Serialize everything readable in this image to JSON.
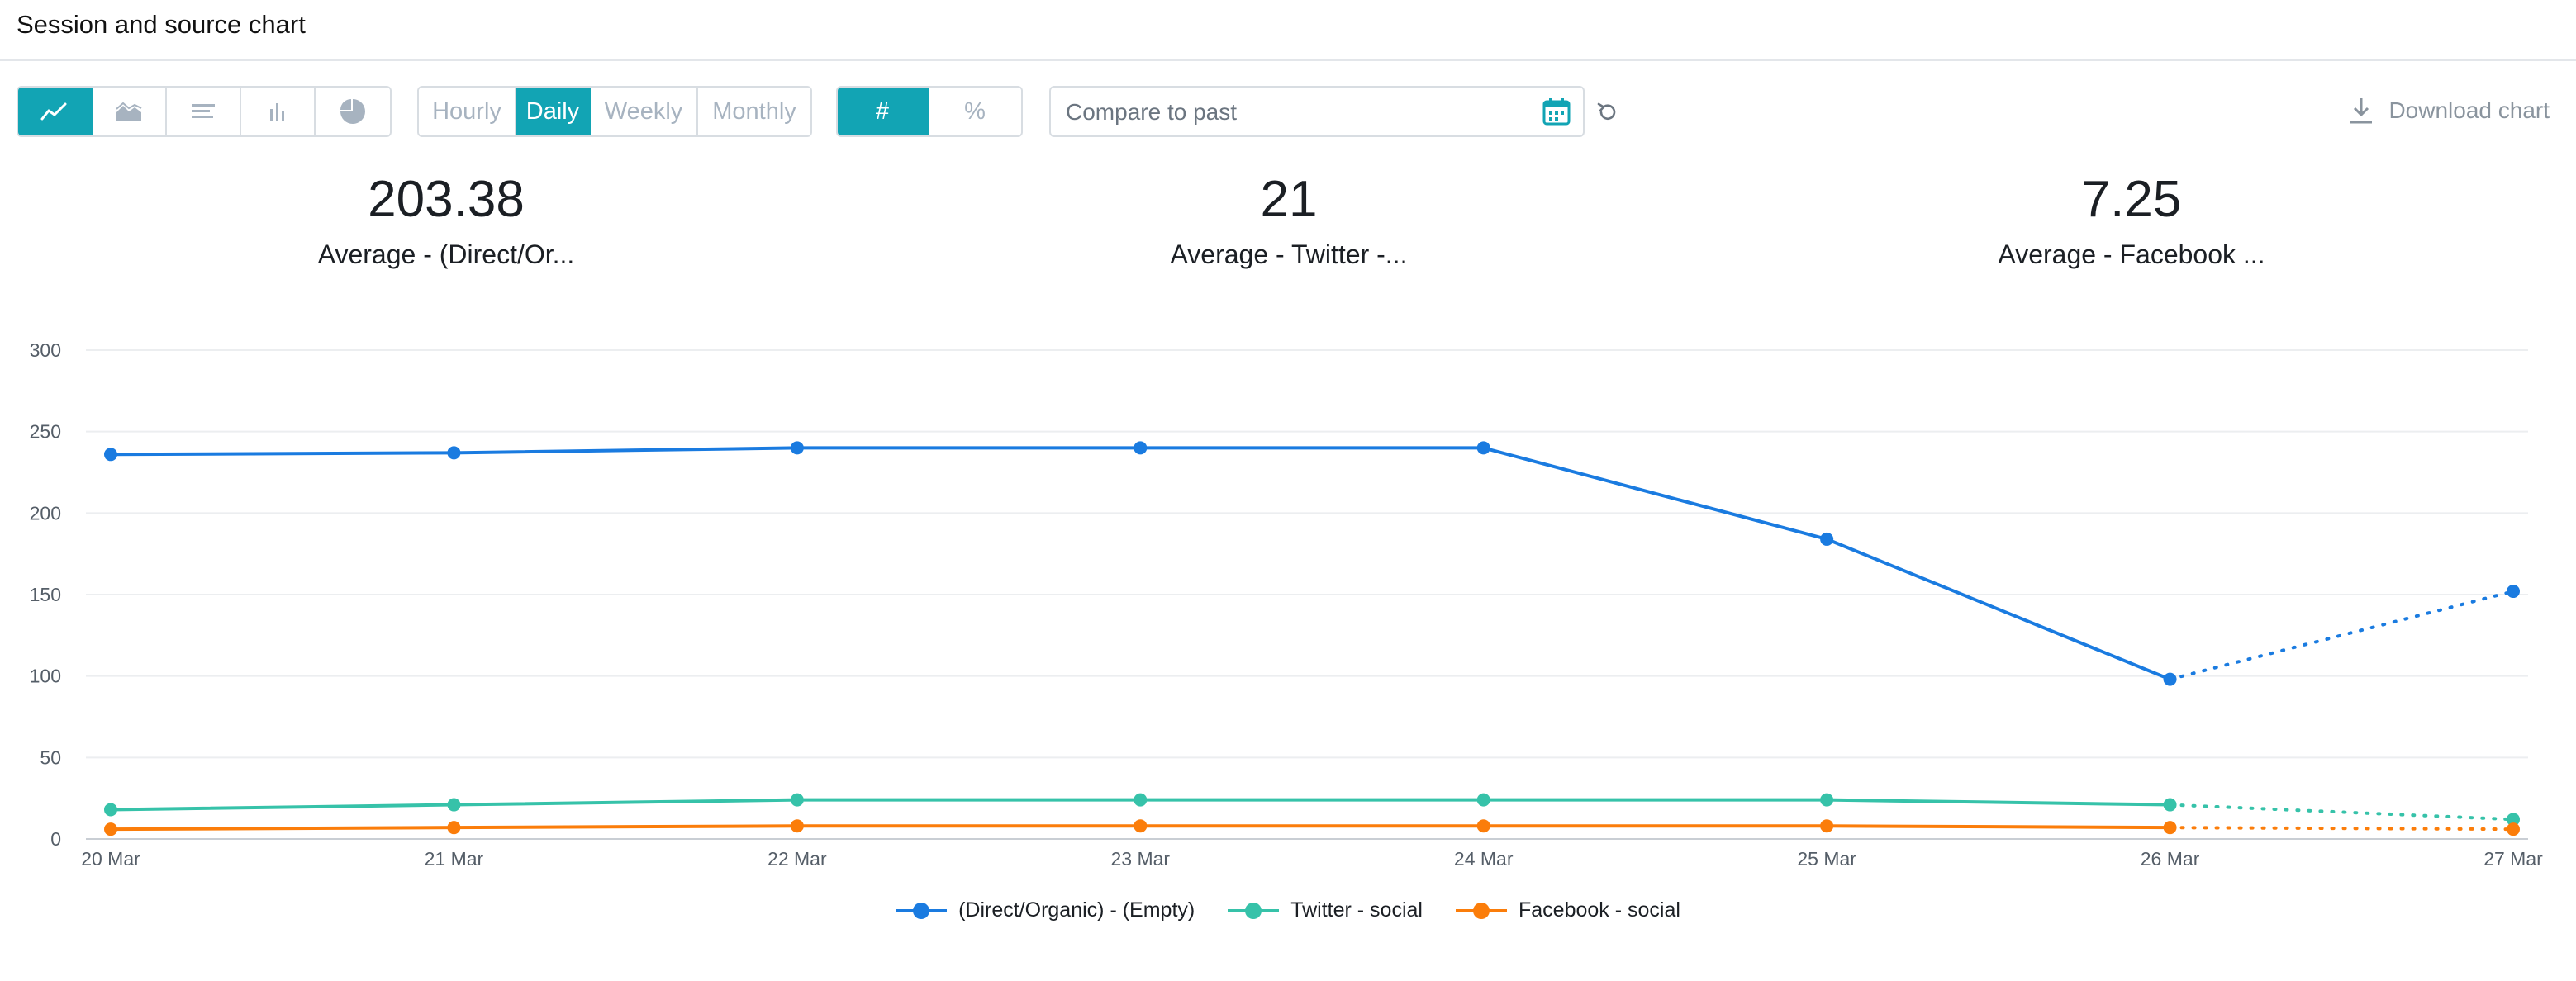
{
  "header": {
    "title": "Session and source chart"
  },
  "toolbar": {
    "chart_types": [
      {
        "icon": "line-chart-icon",
        "active": true
      },
      {
        "icon": "area-chart-icon",
        "active": false
      },
      {
        "icon": "horizontal-bar-icon",
        "active": false
      },
      {
        "icon": "bar-chart-icon",
        "active": false
      },
      {
        "icon": "pie-chart-icon",
        "active": false
      }
    ],
    "granularity": [
      "Hourly",
      "Daily",
      "Weekly",
      "Monthly"
    ],
    "granularity_selected": "Daily",
    "value_mode": [
      "#",
      "%"
    ],
    "value_mode_selected": "#",
    "compare_placeholder": "Compare to past",
    "download_label": "Download chart"
  },
  "stats": [
    {
      "value": "203.38",
      "label": "Average - (Direct/Or..."
    },
    {
      "value": "21",
      "label": "Average - Twitter -..."
    },
    {
      "value": "7.25",
      "label": "Average - Facebook ..."
    }
  ],
  "colors": {
    "accent": "#12a4b4"
  },
  "chart_data": {
    "type": "line",
    "x": [
      "20 Mar",
      "21 Mar",
      "22 Mar",
      "23 Mar",
      "24 Mar",
      "25 Mar",
      "26 Mar",
      "27 Mar"
    ],
    "ylim": [
      0,
      300
    ],
    "yticks": [
      0,
      50,
      100,
      150,
      200,
      250,
      300
    ],
    "grid": true,
    "legend_position": "bottom",
    "partial_last_point": true,
    "series": [
      {
        "name": "(Direct/Organic) - (Empty)",
        "color": "#1a7be0",
        "values": [
          236,
          237,
          240,
          240,
          240,
          184,
          98,
          152
        ]
      },
      {
        "name": "Twitter - social",
        "color": "#36c2a9",
        "values": [
          18,
          21,
          24,
          24,
          24,
          24,
          21,
          12
        ]
      },
      {
        "name": "Facebook - social",
        "color": "#fb7d0a",
        "values": [
          6,
          7,
          8,
          8,
          8,
          8,
          7,
          6
        ]
      }
    ]
  }
}
